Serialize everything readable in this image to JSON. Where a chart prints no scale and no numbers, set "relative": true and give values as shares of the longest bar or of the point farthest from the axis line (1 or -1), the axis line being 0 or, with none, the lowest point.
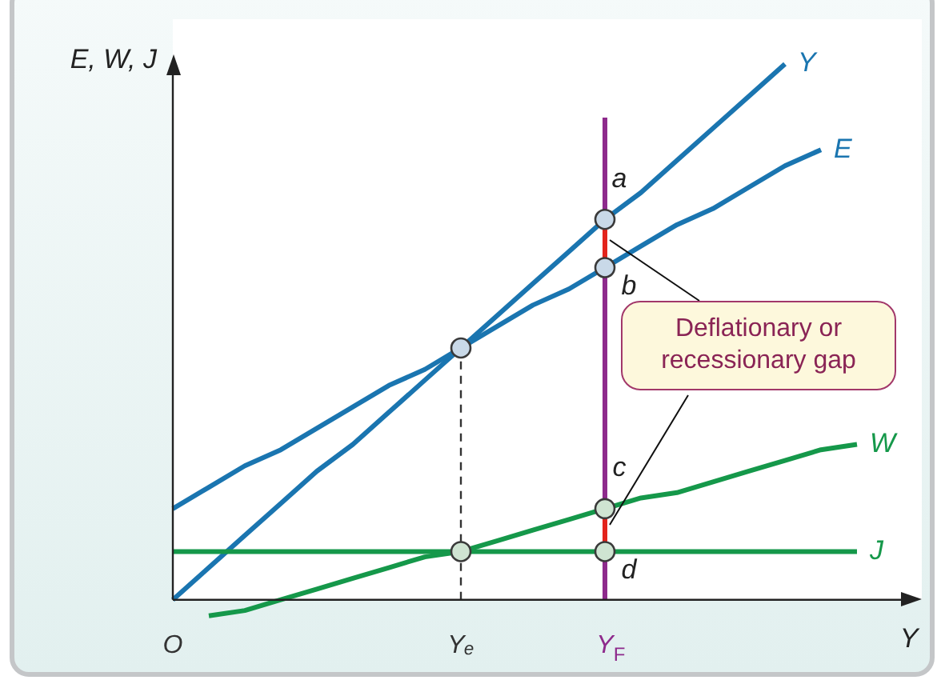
{
  "chart_data": {
    "type": "line",
    "relative": true,
    "xlabel": "Y",
    "ylabel": "E, W, J",
    "legend": false,
    "categories": [
      "O",
      null,
      null,
      null,
      null,
      null,
      null,
      null,
      "Yₑ",
      null,
      null,
      null,
      "Y$_{F}$",
      null,
      null,
      null,
      null,
      null,
      null,
      null,
      null
    ],
    "series": [
      {
        "name": "Y",
        "color": "#1a75b0",
        "values": [
          0,
          0.06,
          0.12,
          0.18,
          0.24,
          0.29,
          0.35,
          0.41,
          0.47,
          0.53,
          0.59,
          0.65,
          0.71,
          0.76,
          0.82,
          0.88,
          0.94,
          1,
          null,
          null,
          null
        ]
      },
      {
        "name": "E",
        "color": "#1a75b0",
        "values": [
          0.17,
          0.21,
          0.25,
          0.28,
          0.32,
          0.36,
          0.4,
          0.43,
          0.47,
          0.51,
          0.55,
          0.58,
          0.62,
          0.66,
          0.7,
          0.73,
          0.77,
          0.81,
          0.84,
          null,
          null
        ]
      },
      {
        "name": "W",
        "color": "#15984a",
        "values": [
          null,
          -0.03,
          -0.02,
          0,
          0.02,
          0.04,
          0.06,
          0.08,
          0.09,
          0.11,
          0.13,
          0.15,
          0.17,
          0.19,
          0.2,
          0.22,
          0.24,
          0.26,
          0.28,
          0.29,
          null
        ]
      },
      {
        "name": "J",
        "color": "#15984a",
        "values": [
          0.09,
          0.09,
          0.09,
          0.09,
          0.09,
          0.09,
          0.09,
          0.09,
          0.09,
          0.09,
          0.09,
          0.09,
          0.09,
          0.09,
          0.09,
          0.09,
          0.09,
          0.09,
          0.09,
          0.09,
          null
        ]
      },
      {
        "color": "#8e2a8c",
        "x": [
          "Y$_{F}$",
          "Y$_{F}$"
        ],
        "values": [
          0,
          0.9
        ]
      },
      {
        "color": "#333333",
        "x": [
          "Yₑ",
          "Yₑ"
        ],
        "values": [
          0,
          0.47
        ],
        "line_style": "dashed"
      },
      {
        "color": "#e3241c",
        "x": [
          "Y$_{F}$",
          "Y$_{F}$"
        ],
        "values": [
          0.62,
          0.71
        ]
      },
      {
        "color": "#e3241c",
        "x": [
          "Y$_{F}$",
          "Y$_{F}$"
        ],
        "values": [
          0.09,
          0.17
        ]
      },
      {
        "type": "scatter",
        "marker": "circle",
        "x": [
          "Yₑ",
          "Y$_{F}$",
          "Y$_{F}$",
          "Yₑ",
          "Y$_{F}$",
          "Y$_{F}$"
        ],
        "values": [
          0.47,
          0.71,
          0.62,
          0.09,
          0.17,
          0.09
        ],
        "colors": [
          "#c9d9e8",
          "#c9d9e8",
          "#c9d9e8",
          "#cfe4d2",
          "#cfe4d2",
          "#cfe4d2"
        ]
      }
    ],
    "annotations": [
      {
        "text": "a",
        "x": "Y$_{F}$",
        "y": 0.71
      },
      {
        "text": "b",
        "x": "Y$_{F}$",
        "y": 0.62
      },
      {
        "text": "c",
        "x": "Y$_{F}$",
        "y": 0.17
      },
      {
        "text": "d",
        "x": "Y$_{F}$",
        "y": 0.09
      },
      "Deflationary or recessionary gap"
    ]
  }
}
